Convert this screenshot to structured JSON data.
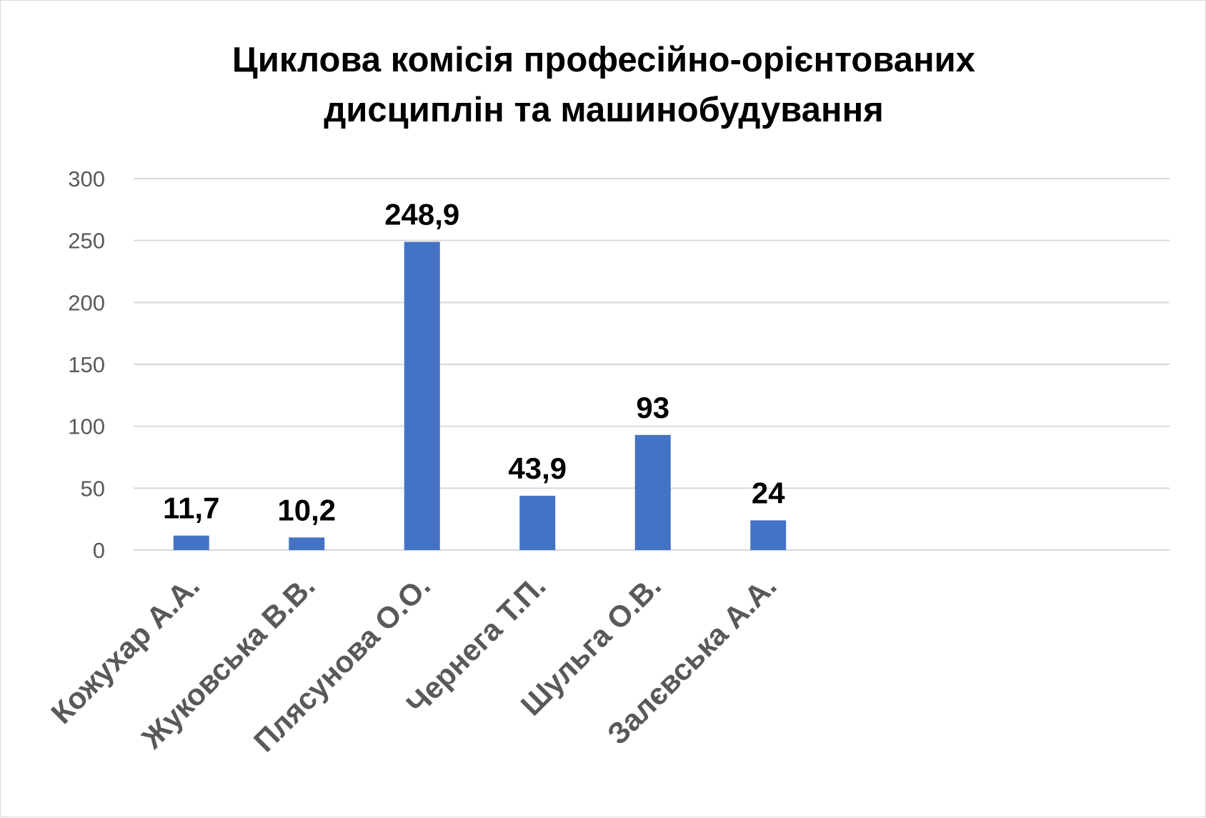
{
  "chart_data": {
    "type": "bar",
    "title": "Циклова комісія професійно-орієнтованих дисциплін та машинобудування",
    "title_lines": [
      "Циклова комісія професійно-орієнтованих",
      "дисциплін та машинобудування"
    ],
    "categories": [
      "Кожухар А.А.",
      "Жуковська В.В.",
      "Плясунова О.О.",
      "Чернега Т.П.",
      "Шульга О.В.",
      "Залєвська А.А."
    ],
    "values": [
      11.7,
      10.2,
      248.9,
      43.9,
      93,
      24
    ],
    "data_labels": [
      "11,7",
      "10,2",
      "248,9",
      "43,9",
      "93",
      "24"
    ],
    "ylim": [
      0,
      300
    ],
    "yticks": [
      0,
      50,
      100,
      150,
      200,
      250,
      300
    ],
    "grid": true,
    "legend": "none",
    "bar_color": "#4472c4",
    "xlabel": "",
    "ylabel": ""
  }
}
